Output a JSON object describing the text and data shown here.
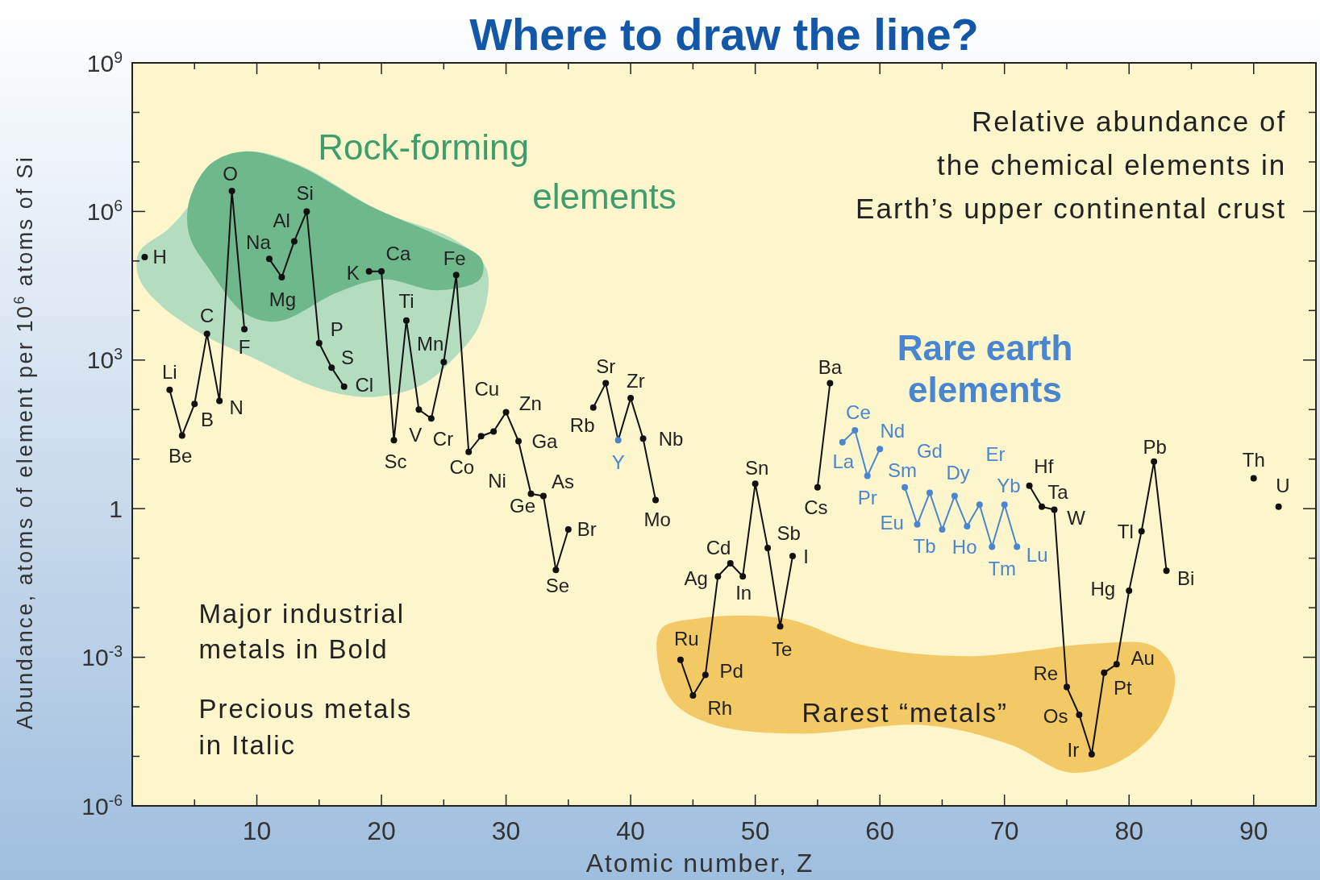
{
  "chart_data": {
    "type": "line",
    "title": "Where to draw the line?",
    "xlabel": "Atomic number, Z",
    "ylabel": "Abundance, atoms of element per 10$^{6}$ atoms of Si",
    "log": "y",
    "marker": "circle",
    "line_style": "solid",
    "xlim": [
      0,
      95
    ],
    "xticks": [
      {
        "value": 5,
        "label": null
      },
      10,
      {
        "value": 15,
        "label": null
      },
      20,
      {
        "value": 25,
        "label": null
      },
      30,
      {
        "value": 35,
        "label": null
      },
      40,
      {
        "value": 45,
        "label": null
      },
      50,
      {
        "value": 55,
        "label": null
      },
      60,
      {
        "value": 65,
        "label": null
      },
      70,
      {
        "value": 75,
        "label": null
      },
      80,
      {
        "value": 85,
        "label": null
      },
      90
    ],
    "ylim": [
      1e-06,
      1000000000.0
    ],
    "yticks": [
      {
        "value": 1000000000.0,
        "label": "10$^{9}$"
      },
      {
        "value": 100000000.0,
        "label": null
      },
      {
        "value": 10000000.0,
        "label": null
      },
      {
        "value": 1000000.0,
        "label": "10$^{6}$"
      },
      {
        "value": 100000.0,
        "label": null
      },
      {
        "value": 10000.0,
        "label": null
      },
      {
        "value": 1000,
        "label": "10$^{3}$"
      },
      {
        "value": 100,
        "label": null
      },
      {
        "value": 10,
        "label": null
      },
      1,
      {
        "value": 0.1,
        "label": null
      },
      {
        "value": 0.01,
        "label": null
      },
      {
        "value": 0.001,
        "label": "10$^{-3}$"
      },
      {
        "value": 0.0001,
        "label": null
      },
      {
        "value": 1e-05,
        "label": null
      },
      {
        "value": 1e-06,
        "label": "10$^{-6}$"
      }
    ],
    "series": [
      {
        "color": "#111111",
        "x": [
          1,
          2,
          3,
          4,
          5,
          6,
          7,
          8,
          9,
          10,
          11,
          12,
          13,
          14,
          15,
          16,
          17,
          18,
          19,
          20,
          21,
          22,
          23,
          24,
          25,
          26,
          27,
          28,
          29,
          30,
          31,
          32,
          33,
          34,
          35,
          36,
          37,
          38,
          39,
          40,
          41,
          42,
          43,
          44,
          45,
          46,
          47,
          48,
          49,
          50,
          51,
          52,
          53,
          54,
          55,
          56,
          57,
          72,
          73,
          74,
          75,
          76,
          77,
          78,
          79,
          80,
          81,
          82,
          83,
          84,
          90,
          91,
          92
        ],
        "values": [
          120000.0,
          null,
          250,
          30,
          130,
          3400,
          150,
          2600000.0,
          4200,
          null,
          110000.0,
          47000.0,
          250000.0,
          1000000.0,
          2200,
          700,
          290,
          null,
          62000.0,
          62000.0,
          24,
          6300,
          100,
          66,
          910,
          52000.0,
          14,
          29,
          36,
          89,
          23,
          2,
          1.8,
          0.058,
          0.38,
          null,
          110,
          340,
          24,
          170,
          26,
          1.5,
          null,
          0.00089,
          0.00017,
          0.00044,
          0.043,
          0.079,
          0.043,
          3.2,
          0.16,
          0.0042,
          0.11,
          null,
          2.7,
          340,
          null,
          2.9,
          1.1,
          0.95,
          0.00025,
          6.9e-05,
          1.1e-05,
          0.00049,
          0.00072,
          0.022,
          0.35,
          8.9,
          0.056,
          null,
          4.1,
          null,
          1.1
        ],
        "colors": [
          "#111111",
          "#111111",
          "#111111",
          "#111111",
          "#111111",
          "#111111",
          "#111111",
          "#111111",
          "#111111",
          "#111111",
          "#111111",
          "#111111",
          "#111111",
          "#111111",
          "#111111",
          "#111111",
          "#111111",
          "#111111",
          "#111111",
          "#111111",
          "#111111",
          "#111111",
          "#111111",
          "#111111",
          "#111111",
          "#111111",
          "#111111",
          "#111111",
          "#111111",
          "#111111",
          "#111111",
          "#111111",
          "#111111",
          "#111111",
          "#111111",
          "#111111",
          "#111111",
          "#111111",
          "#4a86d0",
          "#111111",
          "#111111",
          "#111111",
          "#111111",
          "#111111",
          "#111111",
          "#111111",
          "#111111",
          "#111111",
          "#111111",
          "#111111",
          "#111111",
          "#111111",
          "#111111",
          "#111111",
          "#111111",
          "#111111",
          "#111111",
          "#111111",
          "#111111",
          "#111111",
          "#111111",
          "#111111",
          "#111111",
          "#111111",
          "#111111",
          "#111111",
          "#111111",
          "#111111",
          "#111111",
          "#111111",
          "#111111",
          "#111111",
          "#111111"
        ]
      },
      {
        "color": "#4a86d0",
        "x": [
          57,
          58,
          59,
          60,
          61,
          62,
          63,
          64,
          65,
          66,
          67,
          68,
          69,
          70,
          71
        ],
        "values": [
          22,
          38,
          4.6,
          16,
          null,
          2.7,
          0.48,
          2.1,
          0.38,
          1.8,
          0.44,
          1.2,
          0.17,
          1.2,
          0.17
        ]
      }
    ],
    "annotations": [
      "Rock-forming\nelements",
      "Rare earth\nelements",
      "Relative abundance of\nthe chemical elements in\nEarth’s upper continental crust",
      "Major industrial\nmetals in Bold",
      "Precious metals\nin Italic",
      "Rarest “metals”",
      {
        "text": "H",
        "x": 1,
        "y": 120000.0
      },
      {
        "text": "Li",
        "x": 3,
        "y": 250
      },
      {
        "text": "Be",
        "x": 4,
        "y": 30
      },
      {
        "text": "B",
        "x": 5,
        "y": 130
      },
      {
        "text": "C",
        "x": 6,
        "y": 3400
      },
      {
        "text": "N",
        "x": 7,
        "y": 150
      },
      {
        "text": "O",
        "x": 8,
        "y": 2600000.0
      },
      {
        "text": "F",
        "x": 9,
        "y": 4200
      },
      {
        "text": "Na",
        "x": 11,
        "y": 110000.0
      },
      {
        "text": "Al",
        "x": 13,
        "y": 250000.0
      },
      {
        "text": "Si",
        "x": 14,
        "y": 1000000.0
      },
      {
        "text": "Mg",
        "x": 12,
        "y": 47000.0
      },
      {
        "text": "P",
        "x": 15,
        "y": 2200
      },
      {
        "text": "S",
        "x": 16,
        "y": 700
      },
      {
        "text": "Cl",
        "x": 17,
        "y": 290
      },
      {
        "text": "K",
        "x": 19,
        "y": 62000.0
      },
      {
        "text": "Ca",
        "x": 20,
        "y": 62000.0
      },
      {
        "text": "Fe",
        "x": 26,
        "y": 52000.0
      },
      {
        "text": "Ti",
        "x": 22,
        "y": 6300
      },
      {
        "text": "Mn",
        "x": 25,
        "y": 910
      },
      {
        "text": "Sc",
        "x": 21,
        "y": 24
      },
      {
        "text": "V",
        "x": 23,
        "y": 100
      },
      {
        "text": "Cr",
        "x": 24,
        "y": 66
      },
      {
        "text": "Co",
        "x": 27,
        "y": 14
      },
      {
        "text": "Cu",
        "x": 29,
        "y": 36
      },
      {
        "text": "Zn",
        "x": 30,
        "y": 89
      },
      {
        "text": "Ni",
        "x": 28,
        "y": 29
      },
      {
        "text": "Ga",
        "x": 31,
        "y": 23
      },
      {
        "text": "Ge",
        "x": 32,
        "y": 2
      },
      {
        "text": "As",
        "x": 33,
        "y": 1.8
      },
      {
        "text": "Se",
        "x": 34,
        "y": 0.058
      },
      {
        "text": "Br",
        "x": 35,
        "y": 0.38
      },
      {
        "text": "Rb",
        "x": 37,
        "y": 110
      },
      {
        "text": "Sr",
        "x": 38,
        "y": 340
      },
      {
        "text": "Zr",
        "x": 40,
        "y": 170
      },
      {
        "text": "Y",
        "x": 39,
        "y": 24
      },
      {
        "text": "Nb",
        "x": 41,
        "y": 26
      },
      {
        "text": "Mo",
        "x": 42,
        "y": 1.5
      },
      {
        "text": "Cd",
        "x": 48,
        "y": 0.079
      },
      {
        "text": "Ag",
        "x": 47,
        "y": 0.043
      },
      {
        "text": "In",
        "x": 49,
        "y": 0.043
      },
      {
        "text": "Sn",
        "x": 50,
        "y": 3.2
      },
      {
        "text": "Sb",
        "x": 51,
        "y": 0.16
      },
      {
        "text": "I",
        "x": 53,
        "y": 0.11
      },
      {
        "text": "Te",
        "x": 52,
        "y": 0.0042
      },
      {
        "text": "Ru",
        "x": 44,
        "y": 0.00089
      },
      {
        "text": "Pd",
        "x": 46,
        "y": 0.00044
      },
      {
        "text": "Rh",
        "x": 45,
        "y": 0.00017
      },
      {
        "text": "Cs",
        "x": 55,
        "y": 2.7
      },
      {
        "text": "Ba",
        "x": 56,
        "y": 340
      },
      {
        "text": "Ce",
        "x": 58,
        "y": 38
      },
      {
        "text": "La",
        "x": 57,
        "y": 22
      },
      {
        "text": "Nd",
        "x": 60,
        "y": 16
      },
      {
        "text": "Pr",
        "x": 59,
        "y": 4.6
      },
      {
        "text": "Gd",
        "x": 64,
        "y": 2.1
      },
      {
        "text": "Sm",
        "x": 62,
        "y": 2.7
      },
      {
        "text": "Eu",
        "x": 63,
        "y": 0.48
      },
      {
        "text": "Dy",
        "x": 66,
        "y": 1.8
      },
      {
        "text": "Er",
        "x": 68,
        "y": 1.2
      },
      {
        "text": "Yb",
        "x": 70,
        "y": 1.2
      },
      {
        "text": "Tb",
        "x": 65,
        "y": 0.38
      },
      {
        "text": "Ho",
        "x": 67,
        "y": 0.44
      },
      {
        "text": "Tm",
        "x": 69,
        "y": 0.17
      },
      {
        "text": "Lu",
        "x": 71,
        "y": 0.17
      },
      {
        "text": "Hf",
        "x": 72,
        "y": 2.9
      },
      {
        "text": "Ta",
        "x": 73,
        "y": 1.1
      },
      {
        "text": "W",
        "x": 74,
        "y": 0.95
      },
      {
        "text": "Re",
        "x": 75,
        "y": 0.00025
      },
      {
        "text": "Os",
        "x": 76,
        "y": 6.9e-05
      },
      {
        "text": "Ir",
        "x": 77,
        "y": 1.1e-05
      },
      {
        "text": "Pt",
        "x": 78,
        "y": 0.00049
      },
      {
        "text": "Au",
        "x": 79,
        "y": 0.00072
      },
      {
        "text": "Hg",
        "x": 80,
        "y": 0.022
      },
      {
        "text": "Tl",
        "x": 81,
        "y": 0.35
      },
      {
        "text": "Pb",
        "x": 82,
        "y": 8.9
      },
      {
        "text": "Bi",
        "x": 83,
        "y": 0.056
      },
      {
        "text": "Th",
        "x": 90,
        "y": 4.1
      },
      {
        "text": "U",
        "x": 92,
        "y": 1.1
      }
    ]
  }
}
